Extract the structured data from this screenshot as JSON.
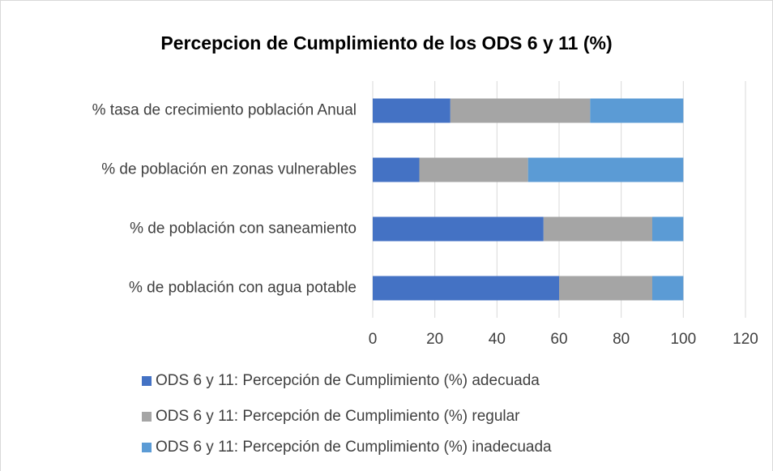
{
  "chart_data": {
    "type": "bar",
    "orientation": "horizontal",
    "stacked": true,
    "title": "Percepcion de Cumplimiento de los ODS 6 y 11 (%)",
    "categories": [
      "% tasa de crecimiento población Anual",
      "% de población en zonas vulnerables",
      "% de población con saneamiento",
      "% de población con agua potable"
    ],
    "series": [
      {
        "name": "ODS 6 y 11: Percepción de Cumplimiento (%) adecuada",
        "color": "#4472c4",
        "values": [
          25,
          15,
          55,
          60
        ]
      },
      {
        "name": "ODS 6 y 11: Percepción de Cumplimiento (%) regular",
        "color": "#a5a5a5",
        "values": [
          45,
          35,
          35,
          30
        ]
      },
      {
        "name": "ODS 6 y 11: Percepción de Cumplimiento (%) inadecuada",
        "color": "#5b9bd5",
        "values": [
          30,
          50,
          10,
          10
        ]
      }
    ],
    "xlim": [
      0,
      120
    ],
    "xticks": [
      0,
      20,
      40,
      60,
      80,
      100,
      120
    ],
    "grid": true,
    "legend": "bottom"
  }
}
